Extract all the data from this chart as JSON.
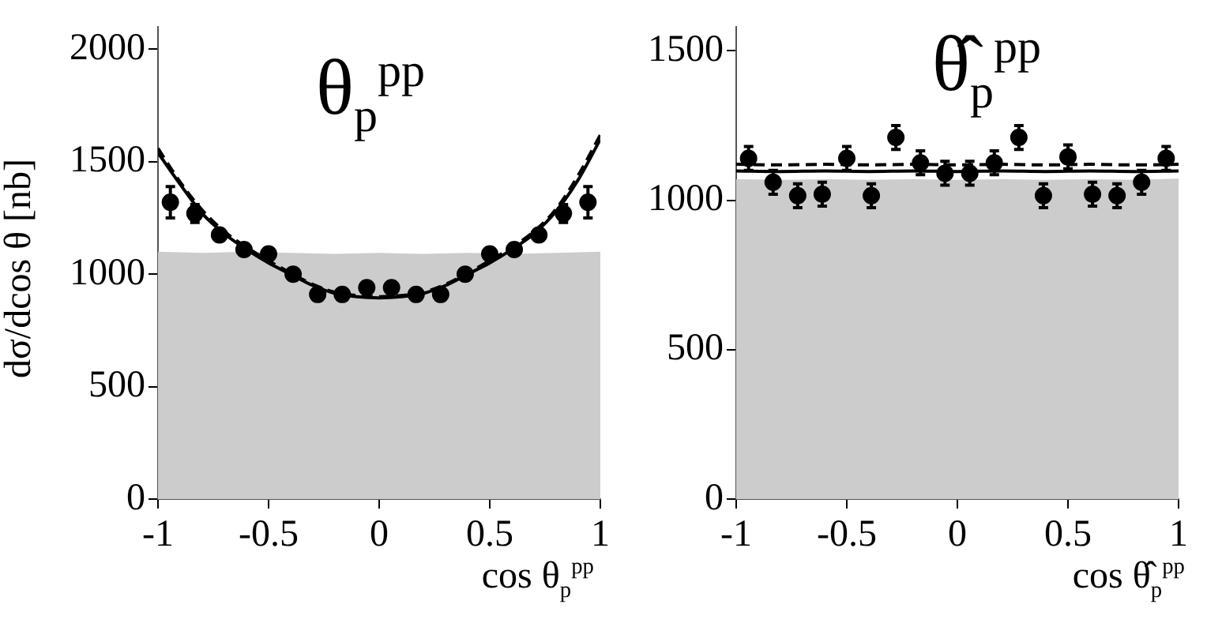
{
  "chart_data": [
    {
      "type": "scatter",
      "ylabel": "dσ/dcos θ [nb]",
      "xlabel": "cos θ$_{p}$$^{pp}$",
      "annotations": [
        "θ$_{p}$$^{pp}$"
      ],
      "xlim": [
        -1,
        1
      ],
      "xticks": [
        -1,
        -0.5,
        0,
        0.5,
        1
      ],
      "ylim": [
        0,
        2100
      ],
      "yticks": [
        0,
        500,
        1000,
        1500,
        2000
      ],
      "grid": false,
      "legend": false,
      "series": [
        {
          "type": "area",
          "color": "#cccccc",
          "x": [
            -1,
            -0.8,
            -0.6,
            -0.4,
            -0.2,
            0,
            0.2,
            0.4,
            0.6,
            0.8,
            1
          ],
          "values": [
            1100,
            1095,
            1100,
            1095,
            1090,
            1095,
            1090,
            1095,
            1090,
            1095,
            1100
          ]
        },
        {
          "type": "line",
          "color": "#000000",
          "line_style": "solid",
          "x": [
            -1,
            -0.9,
            -0.8,
            -0.7,
            -0.6,
            -0.5,
            -0.4,
            -0.3,
            -0.2,
            -0.1,
            0,
            0.1,
            0.2,
            0.3,
            0.4,
            0.5,
            0.6,
            0.7,
            0.8,
            0.9,
            1
          ],
          "values": [
            1540,
            1400,
            1270,
            1180,
            1110,
            1050,
            1000,
            950,
            915,
            900,
            895,
            900,
            915,
            950,
            1000,
            1050,
            1110,
            1180,
            1280,
            1420,
            1600
          ]
        },
        {
          "type": "line",
          "color": "#000000",
          "line_style": "dashed",
          "x": [
            -1,
            -0.9,
            -0.8,
            -0.7,
            -0.6,
            -0.5,
            -0.4,
            -0.3,
            -0.2,
            -0.1,
            0,
            0.1,
            0.2,
            0.3,
            0.4,
            0.5,
            0.6,
            0.7,
            0.8,
            0.9,
            1
          ],
          "values": [
            1560,
            1410,
            1285,
            1190,
            1120,
            1060,
            1005,
            955,
            920,
            905,
            900,
            905,
            920,
            955,
            1005,
            1060,
            1120,
            1190,
            1290,
            1440,
            1620
          ]
        },
        {
          "type": "scatter",
          "color": "#000000",
          "marker": "circle",
          "x": [
            -0.944,
            -0.833,
            -0.722,
            -0.611,
            -0.5,
            -0.389,
            -0.278,
            -0.167,
            -0.056,
            0.056,
            0.167,
            0.278,
            0.389,
            0.5,
            0.611,
            0.722,
            0.833,
            0.944
          ],
          "values": [
            1320,
            1270,
            1175,
            1110,
            1090,
            1000,
            910,
            910,
            940,
            940,
            910,
            910,
            1000,
            1090,
            1110,
            1175,
            1270,
            1320
          ],
          "errors": [
            70,
            40,
            null,
            null,
            null,
            null,
            null,
            null,
            null,
            null,
            null,
            null,
            null,
            null,
            null,
            null,
            40,
            70
          ]
        }
      ]
    },
    {
      "type": "scatter",
      "xlabel": "cos θ̂$_{p}$$^{pp}$",
      "annotations": [
        "θ̂$_{p}$$^{pp}$"
      ],
      "xlim": [
        -1,
        1
      ],
      "xticks": [
        -1,
        -0.5,
        0,
        0.5,
        1
      ],
      "ylim": [
        0,
        1580
      ],
      "yticks": [
        0,
        500,
        1000,
        1500
      ],
      "grid": false,
      "legend": false,
      "series": [
        {
          "type": "area",
          "color": "#cccccc",
          "x": [
            -1,
            -0.8,
            -0.6,
            -0.4,
            -0.2,
            0,
            0.2,
            0.4,
            0.6,
            0.8,
            1
          ],
          "values": [
            1070,
            1068,
            1070,
            1068,
            1070,
            1068,
            1070,
            1068,
            1070,
            1068,
            1072
          ]
        },
        {
          "type": "line",
          "color": "#000000",
          "line_style": "solid",
          "x": [
            -1,
            -0.8,
            -0.6,
            -0.4,
            -0.2,
            0,
            0.2,
            0.4,
            0.6,
            0.8,
            1
          ],
          "values": [
            1098,
            1096,
            1098,
            1096,
            1098,
            1096,
            1098,
            1096,
            1098,
            1096,
            1098
          ]
        },
        {
          "type": "line",
          "color": "#000000",
          "line_style": "dashed",
          "x": [
            -1,
            -0.8,
            -0.6,
            -0.4,
            -0.2,
            0,
            0.2,
            0.4,
            0.6,
            0.8,
            1
          ],
          "values": [
            1120,
            1118,
            1120,
            1118,
            1120,
            1118,
            1120,
            1118,
            1120,
            1118,
            1120
          ]
        },
        {
          "type": "scatter",
          "color": "#000000",
          "marker": "circle",
          "x": [
            -0.944,
            -0.833,
            -0.722,
            -0.611,
            -0.5,
            -0.389,
            -0.278,
            -0.167,
            -0.056,
            0.056,
            0.167,
            0.278,
            0.389,
            0.5,
            0.611,
            0.722,
            0.833,
            0.944
          ],
          "values": [
            1140,
            1060,
            1015,
            1020,
            1140,
            1015,
            1210,
            1125,
            1090,
            1090,
            1125,
            1210,
            1015,
            1145,
            1020,
            1015,
            1060,
            1140
          ],
          "errors": [
            40,
            40,
            40,
            40,
            40,
            40,
            40,
            40,
            40,
            40,
            40,
            40,
            40,
            40,
            40,
            40,
            40,
            40
          ]
        }
      ]
    }
  ]
}
